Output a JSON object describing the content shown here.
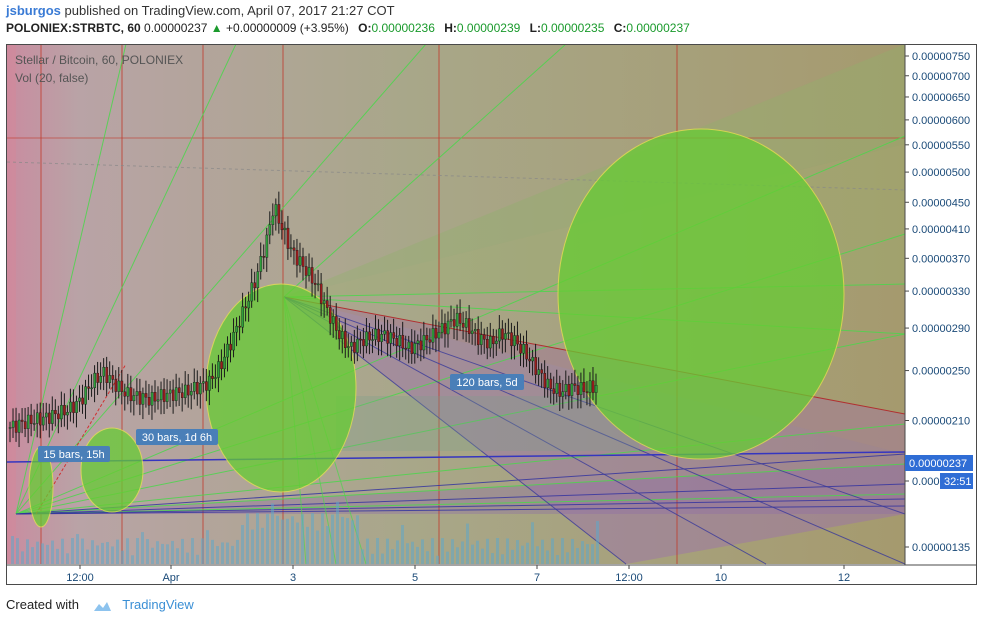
{
  "header": {
    "author": "jsburgos",
    "published_text": "published on TradingView.com, April 07, 2017 21:27 COT",
    "symbol": "POLONIEX:STRBTC, 60",
    "last_price": "0.00000237",
    "change": "+0.00000009 (+3.95%)",
    "o_label": "O:",
    "o_value": "0.00000236",
    "h_label": "H:",
    "h_value": "0.00000239",
    "l_label": "L:",
    "l_value": "0.00000235",
    "c_label": "C:",
    "c_value": "0.00000237"
  },
  "legend": {
    "title": "Stellar / Bitcoin, 60, POLONIEX",
    "volume": "Vol (20, false)"
  },
  "colors": {
    "up": "#2e9e3a",
    "down": "#9b1c1c",
    "price_tag": "#2f6dd5",
    "axis_text": "#1a4a78",
    "annotation_bg": "#4a7fb8"
  },
  "annotations": [
    {
      "text": "15 bars, 15h"
    },
    {
      "text": "30 bars, 1d 6h"
    },
    {
      "text": "120 bars, 5d"
    }
  ],
  "price_tag": {
    "price": "0.00000237",
    "countdown": "32:51"
  },
  "footer": {
    "created_with": "Created with",
    "brand": "TradingView"
  },
  "chart_data": {
    "type": "candlestick",
    "title": "Stellar / Bitcoin, 60, POLONIEX",
    "y_axis_ticks": [
      "0.00000750",
      "0.00000700",
      "0.00000650",
      "0.00000600",
      "0.00000550",
      "0.00000500",
      "0.00000450",
      "0.00000410",
      "0.00000370",
      "0.00000330",
      "0.00000290",
      "0.00000250",
      "0.00000210",
      "0.00000170",
      "0.00000135"
    ],
    "y_tick_values": [
      750,
      700,
      650,
      600,
      550,
      500,
      450,
      410,
      370,
      330,
      290,
      250,
      210,
      170,
      135
    ],
    "y_scale": "log",
    "x_axis_ticks": [
      "12:00",
      "Apr",
      "3",
      "5",
      "7",
      "12:00",
      "10",
      "12"
    ],
    "price_path": [
      [
        0,
        205
      ],
      [
        2,
        208
      ],
      [
        4,
        210
      ],
      [
        6,
        212
      ],
      [
        8,
        215
      ],
      [
        10,
        218
      ],
      [
        12,
        225
      ],
      [
        14,
        240
      ],
      [
        16,
        248
      ],
      [
        18,
        238
      ],
      [
        20,
        230
      ],
      [
        22,
        228
      ],
      [
        24,
        226
      ],
      [
        26,
        229
      ],
      [
        28,
        231
      ],
      [
        30,
        232
      ],
      [
        32,
        236
      ],
      [
        34,
        240
      ],
      [
        36,
        255
      ],
      [
        38,
        280
      ],
      [
        40,
        310
      ],
      [
        42,
        345
      ],
      [
        44,
        400
      ],
      [
        45,
        445
      ],
      [
        46,
        420
      ],
      [
        48,
        380
      ],
      [
        50,
        360
      ],
      [
        52,
        340
      ],
      [
        54,
        310
      ],
      [
        56,
        285
      ],
      [
        58,
        270
      ],
      [
        60,
        278
      ],
      [
        62,
        282
      ],
      [
        64,
        283
      ],
      [
        66,
        278
      ],
      [
        68,
        270
      ],
      [
        70,
        275
      ],
      [
        72,
        282
      ],
      [
        74,
        290
      ],
      [
        76,
        300
      ],
      [
        78,
        292
      ],
      [
        80,
        280
      ],
      [
        82,
        275
      ],
      [
        84,
        285
      ],
      [
        86,
        278
      ],
      [
        88,
        265
      ],
      [
        90,
        250
      ],
      [
        92,
        236
      ],
      [
        94,
        232
      ],
      [
        96,
        236
      ],
      [
        98,
        234
      ],
      [
        100,
        237
      ]
    ],
    "last": 2.37e-06
  }
}
